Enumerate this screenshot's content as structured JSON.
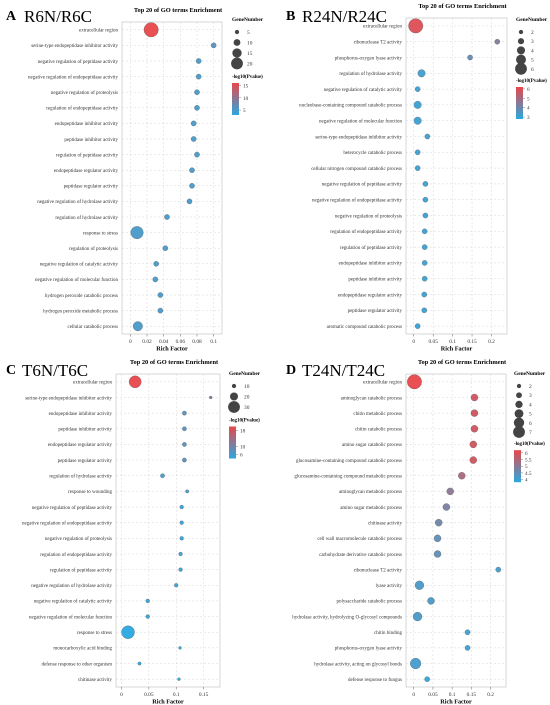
{
  "chart_data": [
    {
      "type": "scatter",
      "panel_letter": "A",
      "comparison": "R6N/R6C",
      "title": "Top 20 of GO terms Enrichment",
      "xlabel": "Rich Factor",
      "xlim": [
        -0.01,
        0.11
      ],
      "xticks": [
        0,
        0.02,
        0.04,
        0.06,
        0.08,
        0.1
      ],
      "xtick_labels": [
        "0",
        "0.02",
        "0.04",
        "0.06",
        "0.08",
        "0.1"
      ],
      "grid": true,
      "size_legend": {
        "title": "GeneNumber",
        "values": [
          5,
          10,
          15,
          20
        ],
        "labels": [
          "5",
          "10",
          "15",
          "20"
        ]
      },
      "color_legend": {
        "title": "-log10(Pvalue)",
        "min": 3,
        "max": 16,
        "ticks": [
          5,
          10,
          15
        ],
        "tick_labels": [
          "5",
          "10",
          "15"
        ],
        "low_color": "#2aa8df",
        "high_color": "#e8474b"
      },
      "terms": [
        "extracellular region",
        "serine-type endopeptidase inhibitor activity",
        "negative regulation of peptidase activity",
        "negative regulation of endopeptidase activity",
        "negative regulation of proteolysis",
        "regulation of endopeptidase activity",
        "endopeptidase inhibitor activity",
        "peptidase inhibitor activity",
        "regulation of peptidase activity",
        "endopeptidase regulator activity",
        "peptidase regulator activity",
        "negative regulation of hydrolase activity",
        "regulation of hydrolase activity",
        "response to stress",
        "regulation of proteolysis",
        "negative regulation of catalytic activity",
        "negative regulation of molecular function",
        "hydrogen peroxide catabolic process",
        "hydrogen peroxide metabolic process",
        "cellular catabolic process"
      ],
      "rich_factor": [
        0.025,
        0.1,
        0.082,
        0.082,
        0.08,
        0.08,
        0.076,
        0.076,
        0.08,
        0.074,
        0.074,
        0.071,
        0.044,
        0.008,
        0.042,
        0.031,
        0.03,
        0.036,
        0.036,
        0.009
      ],
      "gene_number": [
        20,
        5,
        5,
        5,
        5,
        5,
        5,
        5,
        5,
        5,
        5,
        5,
        5,
        17,
        5,
        5,
        5,
        5,
        5,
        12
      ],
      "neg_log10_p": [
        16,
        6,
        5,
        5,
        5,
        5,
        5,
        5,
        5,
        5,
        5,
        5,
        5,
        5,
        5,
        5,
        5,
        5,
        5,
        5
      ]
    },
    {
      "type": "scatter",
      "panel_letter": "B",
      "comparison": "R24N/R24C",
      "title": "Top 20 of GO terms Enrichment",
      "xlabel": "Rich Factor",
      "xlim": [
        -0.02,
        0.24
      ],
      "xticks": [
        0,
        0.05,
        0.1,
        0.15,
        0.2
      ],
      "xtick_labels": [
        "0",
        "0.05",
        "0.1",
        "0.15",
        "0.2"
      ],
      "grid": true,
      "size_legend": {
        "title": "GeneNumber",
        "values": [
          2,
          3,
          4,
          5,
          6
        ],
        "labels": [
          "2",
          "3",
          "4",
          "5",
          "6"
        ]
      },
      "color_legend": {
        "title": "-log10(Pvalue)",
        "min": 2.8,
        "max": 6.2,
        "ticks": [
          3,
          4,
          5,
          6
        ],
        "tick_labels": [
          "3",
          "4",
          "5",
          "6"
        ],
        "low_color": "#2aa8df",
        "high_color": "#e8474b"
      },
      "terms": [
        "extracellular region",
        "ribonuclease T2 activity",
        "phosphorus-oxygen lyase activity",
        "regulation of hydrolase activity",
        "negative regulation of catalytic activity",
        "nucleobase-containing compound catabolic process",
        "negative regulation of molecular function",
        "serine-type endopeptidase inhibitor activity",
        "heterocycle catabolic process",
        "cellular nitrogen compound catabolic process",
        "negative regulation of peptidase activity",
        "negative regulation of endopeptidase activity",
        "negative regulation of proteolysis",
        "regulation of endopeptidase activity",
        "regulation of peptidase activity",
        "endopeptidase inhibitor activity",
        "peptidase inhibitor activity",
        "endopeptidase regulator activity",
        "peptidase regulator activity",
        "aromatic compound catabolic process"
      ],
      "rich_factor": [
        0.005,
        0.215,
        0.145,
        0.02,
        0.01,
        0.01,
        0.01,
        0.035,
        0.01,
        0.01,
        0.03,
        0.03,
        0.03,
        0.028,
        0.028,
        0.028,
        0.028,
        0.027,
        0.027,
        0.01
      ],
      "gene_number": [
        6,
        2,
        2,
        3,
        2,
        3,
        3,
        2,
        2,
        2,
        2,
        2,
        2,
        2,
        2,
        2,
        2,
        2,
        2,
        2
      ],
      "neg_log10_p": [
        6,
        4.4,
        3.8,
        3.2,
        3.1,
        3.1,
        3.1,
        3.2,
        3.1,
        3.1,
        3.1,
        3.1,
        3.1,
        3.1,
        3.1,
        3.1,
        3.1,
        3.1,
        3.1,
        3
      ]
    },
    {
      "type": "scatter",
      "panel_letter": "C",
      "comparison": "T6N/T6C",
      "title": "Top 20 of GO terms Enrichment",
      "xlabel": "Rich Factor",
      "xlim": [
        -0.01,
        0.18
      ],
      "xticks": [
        0,
        0.05,
        0.1,
        0.15
      ],
      "xtick_labels": [
        "0",
        "0.05",
        "0.1",
        "0.15"
      ],
      "grid": true,
      "size_legend": {
        "title": "GeneNumber",
        "values": [
          10,
          20,
          30
        ],
        "labels": [
          "10",
          "20",
          "30"
        ]
      },
      "color_legend": {
        "title": "-log10(Pvalue)",
        "min": 4,
        "max": 20,
        "ticks": [
          6,
          10,
          18
        ],
        "tick_labels": [
          "6",
          "10",
          "18"
        ],
        "low_color": "#2aa8df",
        "high_color": "#e8474b"
      },
      "terms": [
        "extracellular region",
        "serine-type endopeptidase inhibitor activity",
        "endopeptidase inhibitor activity",
        "peptidase inhibitor activity",
        "endopeptidase regulator activity",
        "peptidase regulator activity",
        "regulation of hydrolase activity",
        "response to wounding",
        "negative regulation of peptidase activity",
        "negative regulation of endopeptidase activity",
        "negative regulation of proteolysis",
        "regulation of endopeptidase activity",
        "regulation of peptidase activity",
        "negative regulation of hydrolase activity",
        "negative regulation of catalytic activity",
        "negative regulation of molecular function",
        "response to stress",
        "monocarboxylic acid binding",
        "defense response to other organism",
        "chitinase activity"
      ],
      "rich_factor": [
        0.025,
        0.163,
        0.115,
        0.115,
        0.115,
        0.115,
        0.075,
        0.12,
        0.11,
        0.11,
        0.11,
        0.108,
        0.108,
        0.1,
        0.048,
        0.048,
        0.012,
        0.107,
        0.033,
        0.105
      ],
      "gene_number": [
        25,
        5,
        8,
        8,
        8,
        8,
        8,
        6,
        7,
        7,
        7,
        7,
        7,
        7,
        7,
        7,
        27,
        5,
        6,
        5
      ],
      "neg_log10_p": [
        20,
        12,
        8,
        8,
        8,
        8,
        6,
        6,
        5,
        5,
        5,
        5,
        5,
        5,
        5,
        5,
        4,
        4,
        4,
        4
      ]
    },
    {
      "type": "scatter",
      "panel_letter": "D",
      "comparison": "T24N/T24C",
      "title": "Top 20 of GO terms Enrichment",
      "xlabel": "Rich Factor",
      "xlim": [
        -0.02,
        0.24
      ],
      "xticks": [
        0,
        0.05,
        0.1,
        0.15,
        0.2
      ],
      "xtick_labels": [
        "0",
        "0.05",
        "0.1",
        "0.15",
        "0.2"
      ],
      "grid": true,
      "size_legend": {
        "title": "GeneNumber",
        "values": [
          2,
          3,
          4,
          5,
          6,
          7
        ],
        "labels": [
          "2",
          "3",
          "4",
          "5",
          "6",
          "7"
        ]
      },
      "color_legend": {
        "title": "-log10(Pvalue)",
        "min": 3.8,
        "max": 6.2,
        "ticks": [
          4,
          4.5,
          5,
          5.5,
          6
        ],
        "tick_labels": [
          "4",
          "4.5",
          "5",
          "5.5",
          "6"
        ],
        "low_color": "#2aa8df",
        "high_color": "#e8474b"
      },
      "terms": [
        "extracellular region",
        "aminoglycan catabolic process",
        "chitin metabolic process",
        "chitin catabolic process",
        "amino sugar catabolic process",
        "glucosamine-containing compound catabolic process",
        "glucosamine-containing compound metabolic process",
        "aminoglycan metabolic process",
        "amino sugar metabolic process",
        "chitinase activity",
        "cell wall macromolecule catabolic process",
        "carbohydrate derivative catabolic process",
        "ribonuclease T2 activity",
        "lyase activity",
        "polysaccharide catabolic process",
        "hydrolase activity, hydrolyzing O-glycosyl compounds",
        "chitin binding",
        "phosphorus-oxygen lyase activity",
        "hydrolase activity, acting on glycosyl bonds",
        "defense response to fungus"
      ],
      "rich_factor": [
        0.002,
        0.158,
        0.158,
        0.158,
        0.155,
        0.155,
        0.125,
        0.095,
        0.085,
        0.065,
        0.062,
        0.062,
        0.22,
        0.015,
        0.045,
        0.01,
        0.14,
        0.14,
        0.005,
        0.035
      ],
      "gene_number": [
        7,
        3,
        3,
        3,
        3,
        3,
        3,
        3,
        3,
        3,
        3,
        3,
        2,
        4,
        3,
        4,
        2,
        2,
        5,
        2
      ],
      "neg_log10_p": [
        6.2,
        5.9,
        5.9,
        5.9,
        5.9,
        5.9,
        5.4,
        5,
        4.8,
        4.7,
        4.5,
        4.5,
        4.1,
        4.2,
        4.2,
        4.2,
        4,
        4,
        4.1,
        3.9
      ]
    }
  ]
}
